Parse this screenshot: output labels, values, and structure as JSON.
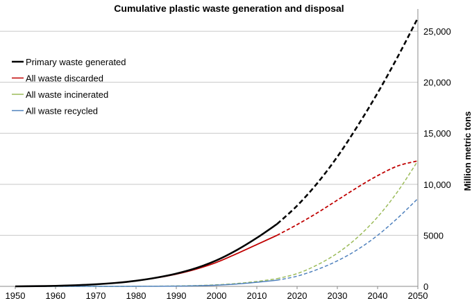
{
  "chart_data": {
    "type": "line",
    "title": "Cumulative plastic waste generation and disposal",
    "xlabel": "",
    "ylabel": "Million metric tons",
    "xlim": [
      1950,
      2050
    ],
    "ylim": [
      0,
      26500
    ],
    "x_ticks": [
      "1950",
      "1960",
      "1970",
      "1980",
      "1990",
      "2000",
      "2010",
      "2020",
      "2030",
      "2040",
      "2050"
    ],
    "y_ticks": [
      "0",
      "5000",
      "10,000",
      "15,000",
      "20,000",
      "25,000"
    ],
    "y_tick_values": [
      0,
      5000,
      10000,
      15000,
      20000,
      25000
    ],
    "grid": "horizontal",
    "legend_position": "top-left",
    "projection_start": 2015,
    "x": [
      1950,
      1955,
      1960,
      1965,
      1970,
      1975,
      1980,
      1985,
      1990,
      1995,
      2000,
      2005,
      2010,
      2015,
      2020,
      2025,
      2030,
      2035,
      2040,
      2045,
      2050
    ],
    "series": [
      {
        "name": "Primary waste generated",
        "color": "#000000",
        "values": [
          0,
          20,
          50,
          110,
          200,
          340,
          550,
          850,
          1250,
          1800,
          2550,
          3550,
          4750,
          6100,
          7900,
          10100,
          12700,
          15700,
          18950,
          22500,
          26300
        ]
      },
      {
        "name": "All waste discarded",
        "color": "#c00000",
        "values": [
          0,
          20,
          50,
          110,
          200,
          340,
          550,
          830,
          1200,
          1700,
          2350,
          3200,
          4100,
          5000,
          6050,
          7200,
          8450,
          9700,
          10850,
          11800,
          12300
        ]
      },
      {
        "name": "All waste incinerated",
        "color": "#9bbb59",
        "values": [
          0,
          0,
          0,
          0,
          0,
          0,
          10,
          20,
          40,
          80,
          150,
          280,
          480,
          750,
          1250,
          2100,
          3250,
          4800,
          6800,
          9300,
          12300
        ]
      },
      {
        "name": "All waste recycled",
        "color": "#4f81bd",
        "values": [
          0,
          0,
          0,
          0,
          0,
          0,
          5,
          10,
          25,
          60,
          120,
          230,
          400,
          600,
          1000,
          1650,
          2500,
          3600,
          5000,
          6700,
          8600
        ]
      }
    ]
  }
}
